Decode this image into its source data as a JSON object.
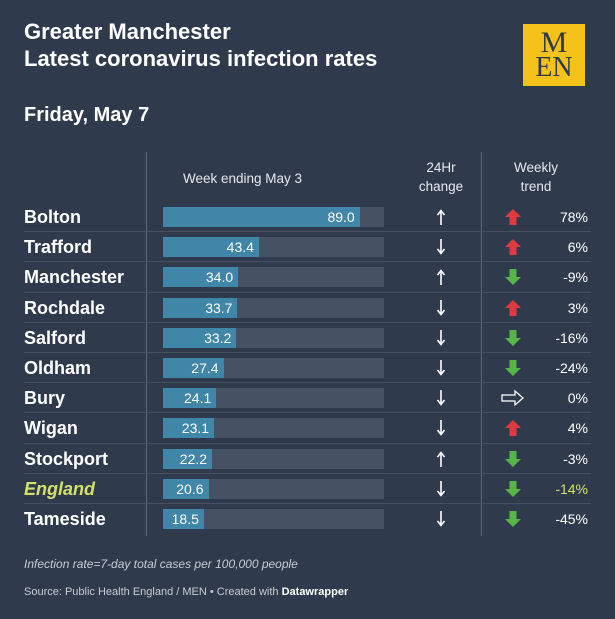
{
  "title_line1": "Greater Manchester",
  "title_line2": "Latest coronavirus infection rates",
  "logo_top": "M",
  "logo_bottom": "EN",
  "date": "Friday, May 7",
  "headers": {
    "week": "Week ending May 3",
    "change_line1": "24Hr",
    "change_line2": "change",
    "trend_line1": "Weekly",
    "trend_line2": "trend"
  },
  "footnote": "Infection rate=7-day total cases per 100,000 people",
  "source_prefix": "Source: Public Health England / MEN • Created with",
  "source_brand": "Datawrapper",
  "colors": {
    "background": "#2f3b4c",
    "bar": "#3f86a8",
    "bar_track": "#465264",
    "trend_up": "#e03a3e",
    "trend_down": "#56b548",
    "highlight": "#d4e06a",
    "logo": "#f5c21a"
  },
  "chart_data": {
    "type": "bar",
    "title": "Latest coronavirus infection rates",
    "xlabel": "Week ending May 3",
    "ylabel": "",
    "xlim": [
      0,
      100
    ],
    "categories": [
      "Bolton",
      "Trafford",
      "Manchester",
      "Rochdale",
      "Salford",
      "Oldham",
      "Bury",
      "Wigan",
      "Stockport",
      "England",
      "Tameside"
    ],
    "values": [
      89.0,
      43.4,
      34.0,
      33.7,
      33.2,
      27.4,
      24.1,
      23.1,
      22.2,
      20.6,
      18.5
    ],
    "value_labels": [
      "89.0",
      "43.4",
      "34.0",
      "33.7",
      "33.2",
      "27.4",
      "24.1",
      "23.1",
      "22.2",
      "20.6",
      "18.5"
    ],
    "change_24hr": [
      "up",
      "down",
      "up",
      "down",
      "down",
      "down",
      "down",
      "down",
      "up",
      "down",
      "down"
    ],
    "weekly_trend": [
      "up",
      "up",
      "down",
      "up",
      "down",
      "down",
      "flat",
      "up",
      "down",
      "down",
      "down"
    ],
    "weekly_trend_pct": [
      "78%",
      "6%",
      "-9%",
      "3%",
      "-16%",
      "-24%",
      "0%",
      "4%",
      "-3%",
      "-14%",
      "-45%"
    ],
    "highlight_category": "England"
  }
}
